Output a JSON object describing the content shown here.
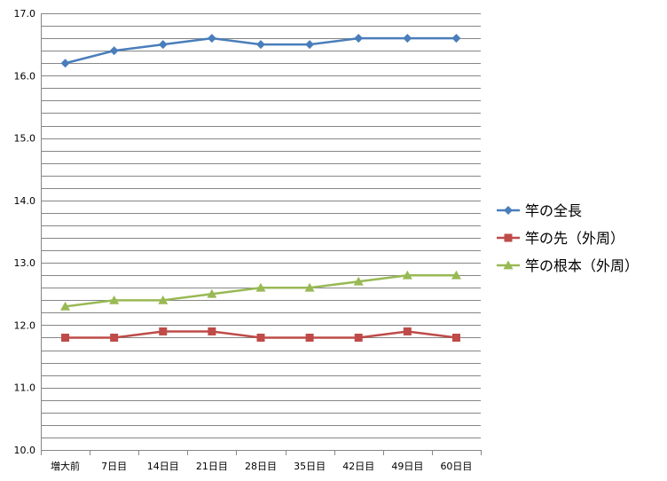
{
  "chart_data": {
    "type": "line",
    "categories": [
      "増大前",
      "7日目",
      "14日目",
      "21日目",
      "28日目",
      "35日目",
      "42日目",
      "49日目",
      "60日目"
    ],
    "y_ticks": [
      "10.0",
      "11.0",
      "12.0",
      "13.0",
      "14.0",
      "15.0",
      "16.0",
      "17.0"
    ],
    "ylim": [
      10,
      17
    ],
    "grid": true,
    "grid_step": 0.2,
    "legend_position": "right",
    "series": [
      {
        "name": "竿の全長",
        "color": "#4a7ebb",
        "marker": "diamond",
        "values": [
          16.2,
          16.4,
          16.5,
          16.6,
          16.5,
          16.5,
          16.6,
          16.6,
          16.6
        ]
      },
      {
        "name": "竿の先（外周）",
        "color": "#be4b48",
        "marker": "square",
        "values": [
          11.8,
          11.8,
          11.9,
          11.9,
          11.8,
          11.8,
          11.8,
          11.9,
          11.8
        ]
      },
      {
        "name": "竿の根本（外周）",
        "color": "#98b954",
        "marker": "triangle",
        "values": [
          12.3,
          12.4,
          12.4,
          12.5,
          12.6,
          12.6,
          12.7,
          12.8,
          12.8
        ]
      }
    ]
  }
}
